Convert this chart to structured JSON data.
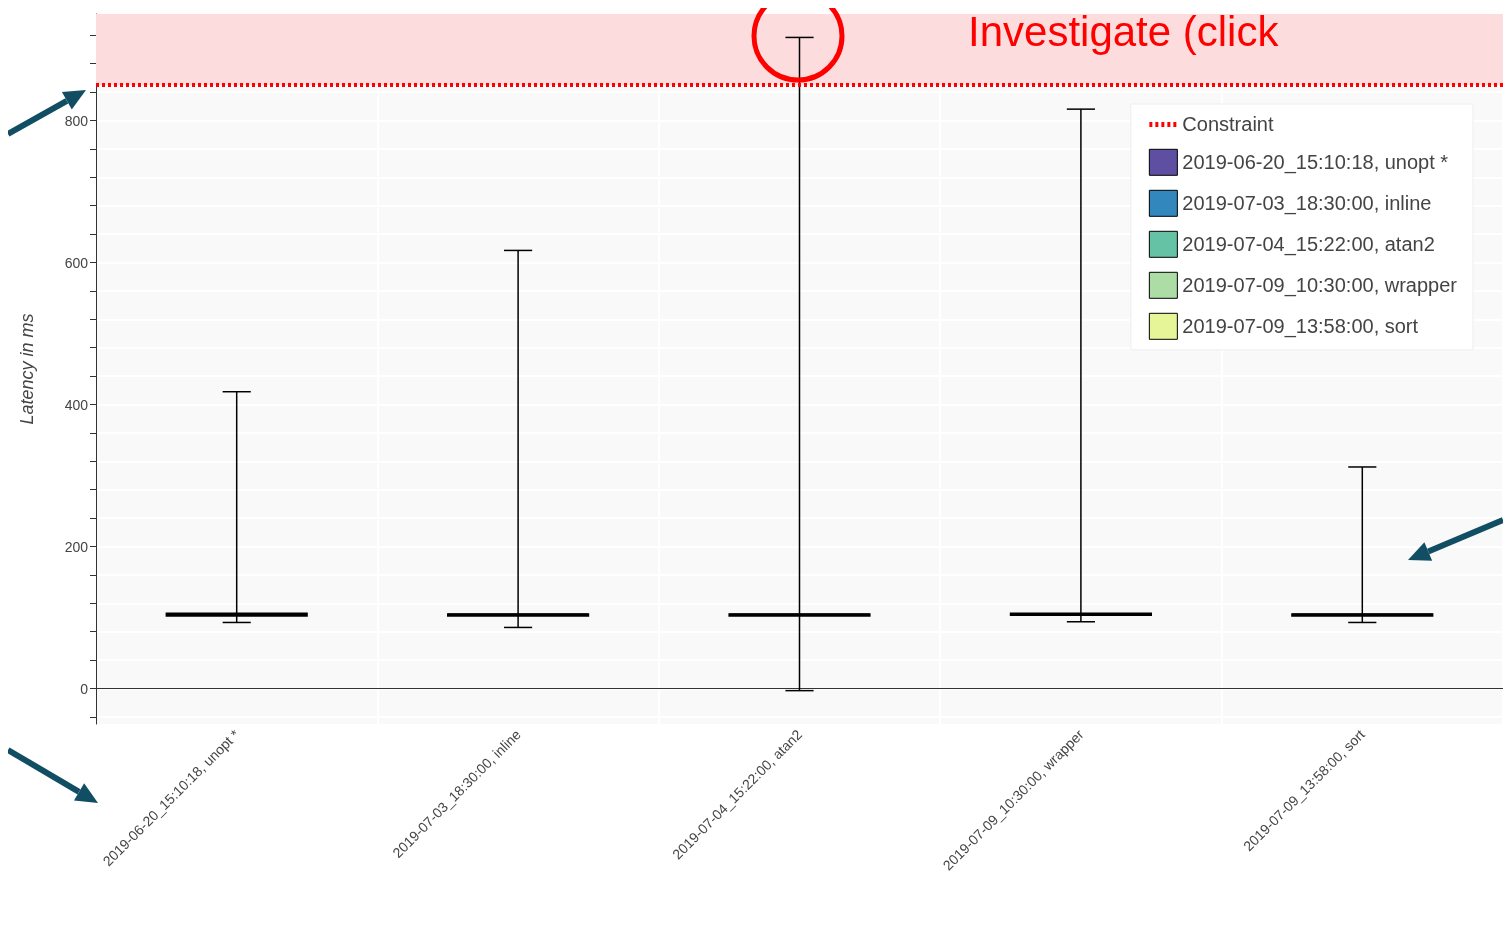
{
  "chart_data": {
    "type": "box",
    "ylabel": "Latency in ms",
    "categories": [
      "2019-06-20_15:10:18, unopt *",
      "2019-07-03_18:30:00, inline",
      "2019-07-04_15:22:00, atan2",
      "2019-07-09_10:30:00, wrapper",
      "2019-07-09_13:58:00, sort"
    ],
    "series": [
      {
        "name": "2019-06-20_15:10:18, unopt *",
        "color": "#5e4fa2",
        "boxes": [
          {
            "low": 93,
            "q1": 102,
            "median": 104,
            "q3": 106,
            "high": 418
          },
          null,
          null,
          null,
          null
        ]
      },
      {
        "name": "2019-07-03_18:30:00, inline",
        "color": "#3288bd",
        "boxes": [
          null,
          {
            "low": 86,
            "q1": 102,
            "median": 104,
            "q3": 105,
            "high": 617
          },
          null,
          null,
          null
        ]
      },
      {
        "name": "2019-07-04_15:22:00, atan2",
        "color": "#66c2a5",
        "boxes": [
          null,
          null,
          {
            "low": -3,
            "q1": 102,
            "median": 104,
            "q3": 105,
            "high": 917
          },
          null,
          null
        ]
      },
      {
        "name": "2019-07-09_10:30:00, wrapper",
        "color": "#abdda4",
        "boxes": [
          null,
          null,
          null,
          {
            "low": 94,
            "q1": 103,
            "median": 104,
            "q3": 106,
            "high": 816
          },
          null
        ]
      },
      {
        "name": "2019-07-09_13:58:00, sort",
        "color": "#e6f598",
        "boxes": [
          null,
          null,
          null,
          null,
          {
            "low": 93,
            "q1": 102,
            "median": 104,
            "q3": 105,
            "high": 312
          }
        ]
      }
    ],
    "ref_lines": [
      {
        "axis": "y",
        "value": 850,
        "label": "Constraint",
        "color": "#ff0000",
        "line_style": "dotted"
      }
    ],
    "bands": [
      {
        "axis": "y",
        "from": 850,
        "to": 950,
        "color": "#fcdcdc"
      }
    ],
    "annotations": [
      "Investigate (click"
    ],
    "ylim": [
      -50,
      950
    ],
    "yticks": [
      {
        "value": -40,
        "label": null
      },
      0,
      {
        "value": 40,
        "label": null
      },
      {
        "value": 80,
        "label": null
      },
      {
        "value": 120,
        "label": null
      },
      {
        "value": 160,
        "label": null
      },
      200,
      {
        "value": 240,
        "label": null
      },
      {
        "value": 280,
        "label": null
      },
      {
        "value": 320,
        "label": null
      },
      {
        "value": 360,
        "label": null
      },
      400,
      {
        "value": 440,
        "label": null
      },
      {
        "value": 480,
        "label": null
      },
      {
        "value": 520,
        "label": null
      },
      {
        "value": 560,
        "label": null
      },
      600,
      {
        "value": 640,
        "label": null
      },
      {
        "value": 680,
        "label": null
      },
      {
        "value": 720,
        "label": null
      },
      {
        "value": 760,
        "label": null
      },
      800,
      {
        "value": 840,
        "label": null
      },
      {
        "value": 880,
        "label": null
      },
      {
        "value": 920,
        "label": null
      }
    ],
    "grid": true,
    "legend": "top right"
  }
}
